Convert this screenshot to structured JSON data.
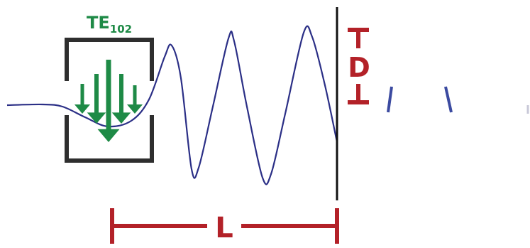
{
  "title": {
    "main": "TE",
    "subscript": "102"
  },
  "dimension_labels": {
    "depth": "D",
    "length": "L"
  },
  "colors": {
    "wave": "#2b2f86",
    "cavity": "#2e2e2e",
    "arrows": "#1e8a46",
    "dimension": "#b32128",
    "wall": "#111111"
  },
  "icons": {
    "arrow": "down-arrow-icon"
  }
}
